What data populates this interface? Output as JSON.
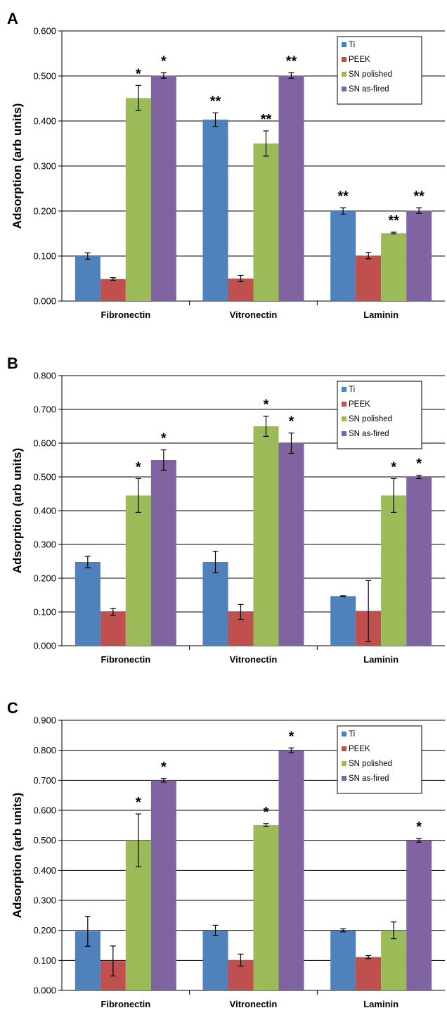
{
  "chart_data": [
    {
      "type": "bar",
      "panel_label": "A",
      "categories": [
        "Fibronectin",
        "Vitronectin",
        "Laminin"
      ],
      "ylabel": "Adsorption (arb units)",
      "ylim": [
        0,
        0.6
      ],
      "yticks": [
        "0.000",
        "0.100",
        "0.200",
        "0.300",
        "0.400",
        "0.500",
        "0.600"
      ],
      "grid": true,
      "legend": "top-right",
      "series": [
        {
          "name": "Ti",
          "color": "#4F81BD",
          "values": [
            0.1,
            0.403,
            0.2
          ],
          "errors": [
            0.007,
            0.015,
            0.007
          ],
          "sig": [
            "",
            "**",
            "**"
          ]
        },
        {
          "name": "PEEK",
          "color": "#C0504D",
          "values": [
            0.049,
            0.05,
            0.101
          ],
          "errors": [
            0.003,
            0.007,
            0.007
          ],
          "sig": [
            "",
            "",
            ""
          ]
        },
        {
          "name": "SN polished",
          "color": "#9BBB59",
          "values": [
            0.451,
            0.35,
            0.151
          ],
          "errors": [
            0.028,
            0.028,
            0.002
          ],
          "sig": [
            "*",
            "**",
            "**"
          ]
        },
        {
          "name": "SN as-fired",
          "color": "#8064A2",
          "values": [
            0.501,
            0.501,
            0.201
          ],
          "errors": [
            0.006,
            0.006,
            0.006
          ],
          "sig": [
            "*",
            "**",
            "**"
          ]
        }
      ]
    },
    {
      "type": "bar",
      "panel_label": "B",
      "categories": [
        "Fibronectin",
        "Vitronectin",
        "Laminin"
      ],
      "ylabel": "Adsorption (arb units)",
      "ylim": [
        0,
        0.8
      ],
      "yticks": [
        "0.000",
        "0.100",
        "0.200",
        "0.300",
        "0.400",
        "0.500",
        "0.600",
        "0.700",
        "0.800"
      ],
      "grid": true,
      "legend": "top-right",
      "series": [
        {
          "name": "Ti",
          "color": "#4F81BD",
          "values": [
            0.248,
            0.248,
            0.147
          ],
          "errors": [
            0.017,
            0.032,
            0.001
          ],
          "sig": [
            "",
            "",
            ""
          ]
        },
        {
          "name": "PEEK",
          "color": "#C0504D",
          "values": [
            0.1,
            0.1,
            0.103
          ],
          "errors": [
            0.01,
            0.022,
            0.09
          ],
          "sig": [
            "",
            "",
            ""
          ]
        },
        {
          "name": "SN polished",
          "color": "#9BBB59",
          "values": [
            0.445,
            0.65,
            0.445
          ],
          "errors": [
            0.05,
            0.03,
            0.05
          ],
          "sig": [
            "*",
            "*",
            "*"
          ]
        },
        {
          "name": "SN as-fired",
          "color": "#8064A2",
          "values": [
            0.55,
            0.6,
            0.5
          ],
          "errors": [
            0.03,
            0.03,
            0.005
          ],
          "sig": [
            "*",
            "*",
            "*"
          ]
        }
      ]
    },
    {
      "type": "bar",
      "panel_label": "C",
      "categories": [
        "Fibronectin",
        "Vitronectin",
        "Laminin"
      ],
      "ylabel": "Adsorption (arb units)",
      "ylim": [
        0,
        0.9
      ],
      "yticks": [
        "0.000",
        "0.100",
        "0.200",
        "0.300",
        "0.400",
        "0.500",
        "0.600",
        "0.700",
        "0.800",
        "0.900"
      ],
      "grid": true,
      "legend": "top-right",
      "series": [
        {
          "name": "Ti",
          "color": "#4F81BD",
          "values": [
            0.197,
            0.2,
            0.2
          ],
          "errors": [
            0.05,
            0.017,
            0.005
          ],
          "sig": [
            "",
            "",
            ""
          ]
        },
        {
          "name": "PEEK",
          "color": "#C0504D",
          "values": [
            0.098,
            0.101,
            0.111
          ],
          "errors": [
            0.05,
            0.02,
            0.005
          ],
          "sig": [
            "",
            "",
            ""
          ]
        },
        {
          "name": "SN polished",
          "color": "#9BBB59",
          "values": [
            0.5,
            0.551,
            0.2
          ],
          "errors": [
            0.088,
            0.005,
            0.028
          ],
          "sig": [
            "*",
            "*",
            ""
          ]
        },
        {
          "name": "SN as-fired",
          "color": "#8064A2",
          "values": [
            0.7,
            0.8,
            0.5
          ],
          "errors": [
            0.006,
            0.008,
            0.006
          ],
          "sig": [
            "*",
            "*",
            "*"
          ]
        }
      ]
    }
  ]
}
